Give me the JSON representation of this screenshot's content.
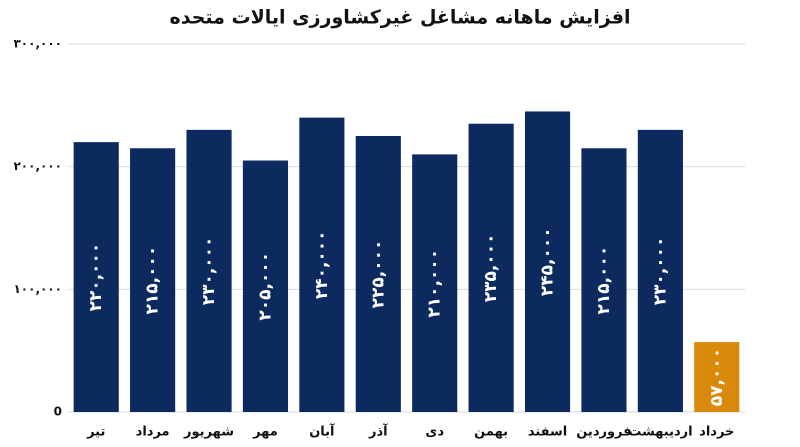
{
  "chart_data": {
    "type": "bar",
    "title": "افزایش ماهانه مشاغل غیرکشاورزی ایالات متحده",
    "categories": [
      "تیر",
      "مرداد",
      "شهریور",
      "مهر",
      "آبان",
      "آذر",
      "دی",
      "بهمن",
      "اسفند",
      "فروردین",
      "اردیبهشت",
      "خرداد"
    ],
    "values": [
      220000,
      215000,
      230000,
      205000,
      240000,
      225000,
      210000,
      235000,
      245000,
      215000,
      230000,
      57000
    ],
    "value_labels": [
      "۲۲۰,۰۰۰",
      "۲۱۵,۰۰۰",
      "۲۳۰,۰۰۰",
      "۲۰۵,۰۰۰",
      "۲۴۰,۰۰۰",
      "۲۲۵,۰۰۰",
      "۲۱۰,۰۰۰",
      "۲۳۵,۰۰۰",
      "۲۴۵,۰۰۰",
      "۲۱۵,۰۰۰",
      "۲۳۰,۰۰۰",
      "۵۷,۰۰۰"
    ],
    "colors": [
      "#0c2a5e",
      "#0c2a5e",
      "#0c2a5e",
      "#0c2a5e",
      "#0c2a5e",
      "#0c2a5e",
      "#0c2a5e",
      "#0c2a5e",
      "#0c2a5e",
      "#0c2a5e",
      "#0c2a5e",
      "#d98a0b"
    ],
    "ylim": [
      0,
      300000
    ],
    "yticks": [
      0,
      {
        "value": 100000,
        "label": "۱۰۰,۰۰۰"
      },
      {
        "value": 200000,
        "label": "۲۰۰,۰۰۰"
      },
      {
        "value": 300000,
        "label": "۳۰۰,۰۰۰"
      }
    ],
    "grid": true
  }
}
